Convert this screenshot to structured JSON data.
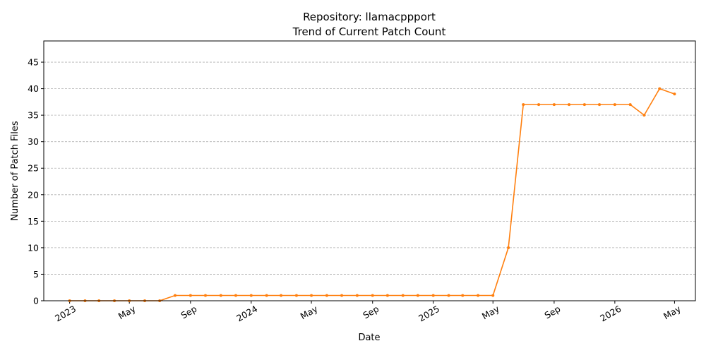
{
  "chart_data": {
    "type": "line",
    "title": "Repository: llamacppport",
    "subtitle": "Trend of Current Patch Count",
    "xlabel": "Date",
    "ylabel": "Number of Patch Files",
    "ylim": [
      0,
      49
    ],
    "yticks": [
      0,
      5,
      10,
      15,
      20,
      25,
      30,
      35,
      40,
      45
    ],
    "xlim": [
      "2022-11-10",
      "2026-06-12"
    ],
    "xticks": [
      {
        "date": "2023-01-01",
        "label": "2023"
      },
      {
        "date": "2023-05-01",
        "label": "May"
      },
      {
        "date": "2023-09-01",
        "label": "Sep"
      },
      {
        "date": "2024-01-01",
        "label": "2024"
      },
      {
        "date": "2024-05-01",
        "label": "May"
      },
      {
        "date": "2024-09-01",
        "label": "Sep"
      },
      {
        "date": "2025-01-01",
        "label": "2025"
      },
      {
        "date": "2025-05-01",
        "label": "May"
      },
      {
        "date": "2025-09-01",
        "label": "Sep"
      },
      {
        "date": "2026-01-01",
        "label": "2026"
      },
      {
        "date": "2026-05-01",
        "label": "May"
      }
    ],
    "grid": "y-dashed",
    "line_color": "#ff7f0e",
    "series": [
      {
        "x": [
          "2023-01-01",
          "2023-02-01",
          "2023-03-01",
          "2023-04-01",
          "2023-05-01",
          "2023-06-01",
          "2023-07-01",
          "2023-08-01",
          "2023-09-01",
          "2023-10-01",
          "2023-11-01",
          "2023-12-01",
          "2024-01-01",
          "2024-02-01",
          "2024-03-01",
          "2024-04-01",
          "2024-05-01",
          "2024-06-01",
          "2024-07-01",
          "2024-08-01",
          "2024-09-01",
          "2024-10-01",
          "2024-11-01",
          "2024-12-01",
          "2025-01-01",
          "2025-02-01",
          "2025-03-01",
          "2025-04-01",
          "2025-05-01",
          "2025-06-01",
          "2025-07-01",
          "2025-08-01",
          "2025-09-01",
          "2025-10-01",
          "2025-11-01",
          "2025-12-01",
          "2026-01-01",
          "2026-02-01",
          "2026-03-01",
          "2026-04-01",
          "2026-05-01"
        ],
        "values": [
          0,
          0,
          0,
          0,
          0,
          0,
          0,
          1,
          1,
          1,
          1,
          1,
          1,
          1,
          1,
          1,
          1,
          1,
          1,
          1,
          1,
          1,
          1,
          1,
          1,
          1,
          1,
          1,
          1,
          10,
          37,
          37,
          37,
          37,
          37,
          37,
          37,
          37,
          35,
          40,
          39
        ]
      }
    ]
  }
}
